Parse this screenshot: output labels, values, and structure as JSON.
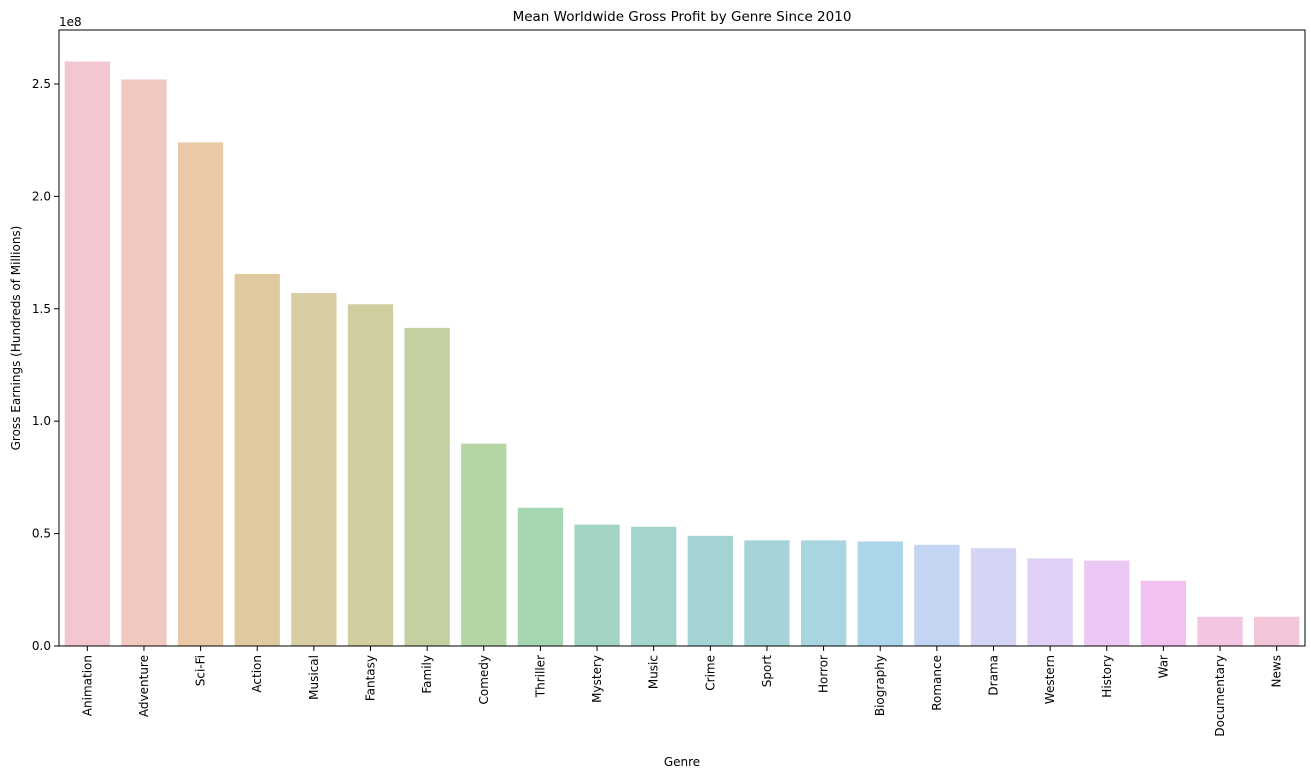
{
  "chart_data": {
    "type": "bar",
    "title": "Mean Worldwide Gross Profit by Genre Since 2010",
    "xlabel": "Genre",
    "ylabel": "Gross Earnings (Hundreds of Millions)",
    "y_offset_label": "1e8",
    "y_scale": 100000000,
    "ylim": [
      0,
      274000000
    ],
    "yticks": [
      0,
      50000000,
      100000000,
      150000000,
      200000000,
      250000000
    ],
    "ytick_labels": [
      "0.0",
      "0.5",
      "1.0",
      "1.5",
      "2.0",
      "2.5"
    ],
    "grid": false,
    "legend": false,
    "categories": [
      "Animation",
      "Adventure",
      "Sci-Fi",
      "Action",
      "Musical",
      "Fantasy",
      "Family",
      "Comedy",
      "Thriller",
      "Mystery",
      "Music",
      "Crime",
      "Sport",
      "Horror",
      "Biography",
      "Romance",
      "Drama",
      "Western",
      "History",
      "War",
      "Documentary",
      "News"
    ],
    "values": [
      260000000,
      252000000,
      224000000,
      165500000,
      157000000,
      152000000,
      141500000,
      90000000,
      61500000,
      54000000,
      53000000,
      49000000,
      47000000,
      47000000,
      46500000,
      45000000,
      43500000,
      39000000,
      38000000,
      29000000,
      13000000,
      13000000
    ],
    "colors": [
      "#f4c6cf",
      "#f1c8c0",
      "#ecc9a6",
      "#e0cba1",
      "#d8cda2",
      "#d0cd9f",
      "#c4d0a0",
      "#b5d5a2",
      "#a4d6b2",
      "#a2d5c6",
      "#a4d5cd",
      "#a3d3d2",
      "#a4d3d8",
      "#a8d5e0",
      "#aad5ea",
      "#c4d4f3",
      "#d4d4f5",
      "#e0d0f5",
      "#ecc8f4",
      "#f2c1ef",
      "#f3c5e3",
      "#f2c6d8"
    ]
  }
}
